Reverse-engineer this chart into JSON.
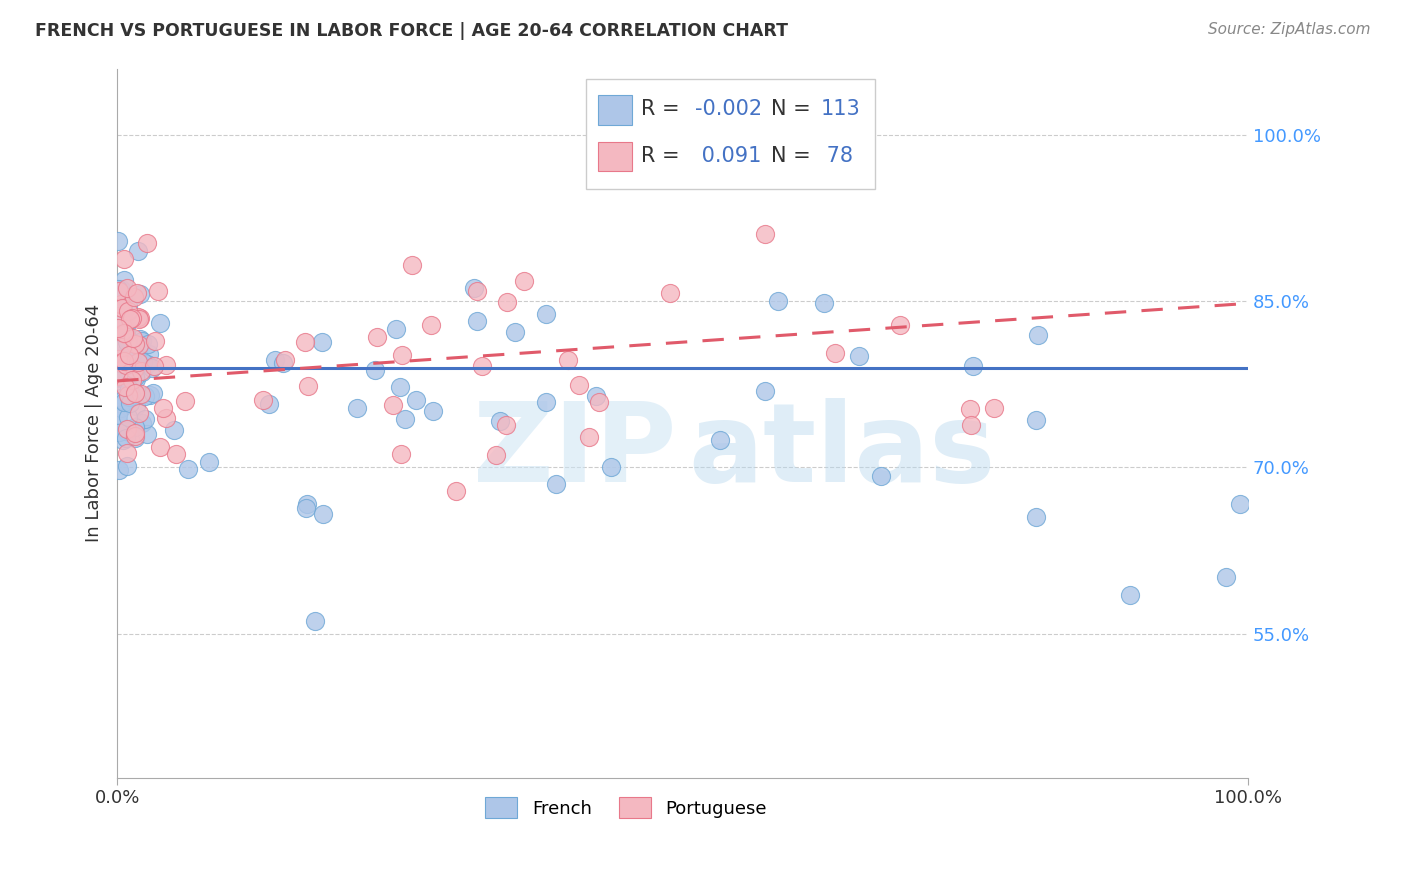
{
  "title": "FRENCH VS PORTUGUESE IN LABOR FORCE | AGE 20-64 CORRELATION CHART",
  "source": "Source: ZipAtlas.com",
  "ylabel": "In Labor Force | Age 20-64",
  "xlim": [
    0.0,
    1.0
  ],
  "ylim": [
    0.42,
    1.06
  ],
  "yticks": [
    0.55,
    0.7,
    0.85,
    1.0
  ],
  "ytick_labels": [
    "55.0%",
    "70.0%",
    "85.0%",
    "100.0%"
  ],
  "xtick_labels": [
    "0.0%",
    "100.0%"
  ],
  "xticks": [
    0.0,
    1.0
  ],
  "french_color": "#aec6e8",
  "portuguese_color": "#f4b8c1",
  "french_edge": "#6fa8d6",
  "portuguese_edge": "#e8788a",
  "trend_french_color": "#4472c4",
  "trend_portuguese_color": "#e05a6a",
  "french_R": -0.002,
  "french_N": 113,
  "portuguese_R": 0.091,
  "portuguese_N": 78,
  "legend_text_color": "#4472c4",
  "legend_label_color": "#333333",
  "background_color": "#ffffff",
  "grid_color": "#cccccc",
  "right_tick_color": "#4499ff",
  "french_trend_y_start": 0.79,
  "french_trend_y_end": 0.79,
  "port_trend_y_start": 0.778,
  "port_trend_y_end": 0.848
}
